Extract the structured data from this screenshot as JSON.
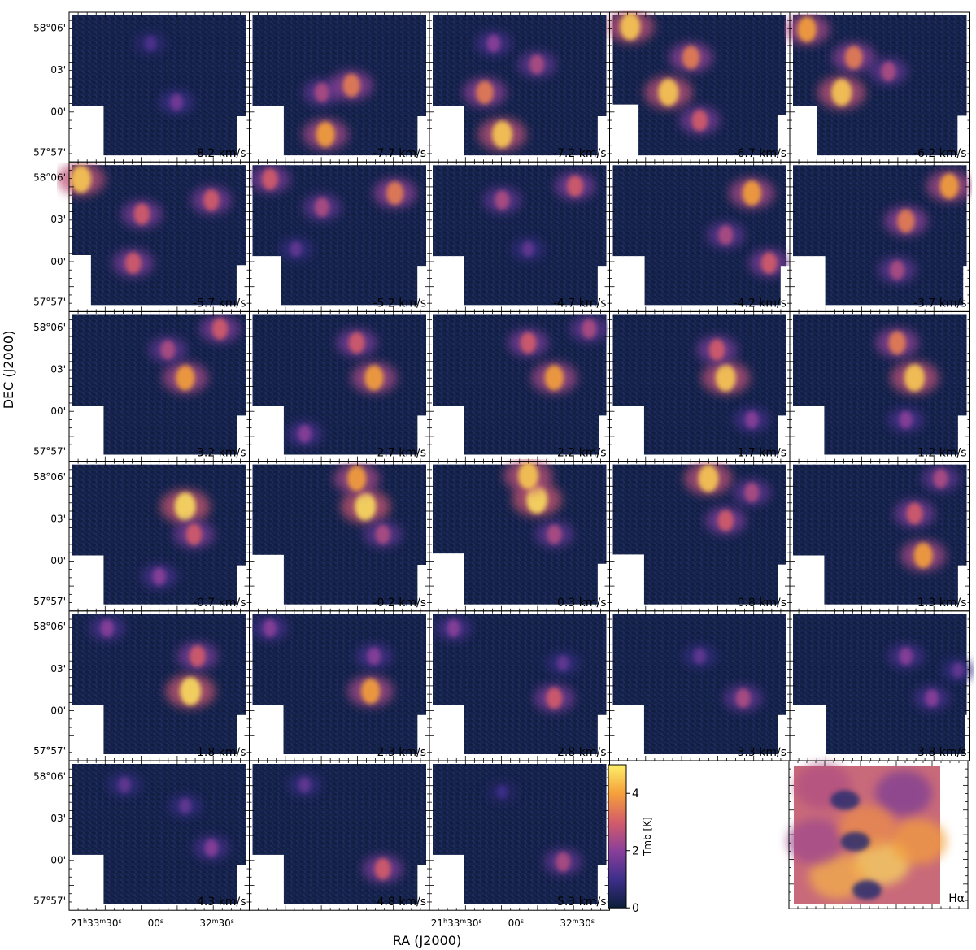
{
  "chart_data": {
    "type": "heatmap",
    "title": "",
    "xlabel": "RA (J2000)",
    "ylabel": "DEC (J2000)",
    "y_tick_labels": [
      "58°06'",
      "03'",
      "00'",
      "57°57'"
    ],
    "x_tick_labels": [
      "21h33m30s",
      "00s",
      "32m30s"
    ],
    "colorbar": {
      "label": "Tmb [K]",
      "range": [
        0,
        5
      ],
      "ticks": [
        0,
        2,
        4
      ],
      "colors": [
        "#0b1e3a",
        "#3d2f8a",
        "#8a3f9a",
        "#d45c6a",
        "#f5a03a",
        "#fdf06a"
      ]
    },
    "panels": [
      {
        "label": "-8.2 km/s",
        "velocity": -8.2
      },
      {
        "label": "-7.7 km/s",
        "velocity": -7.7
      },
      {
        "label": "-7.2 km/s",
        "velocity": -7.2
      },
      {
        "label": "-6.7 km/s",
        "velocity": -6.7
      },
      {
        "label": "-6.2 km/s",
        "velocity": -6.2
      },
      {
        "label": "-5.7 km/s",
        "velocity": -5.7
      },
      {
        "label": "-5.2 km/s",
        "velocity": -5.2
      },
      {
        "label": "-4.7 km/s",
        "velocity": -4.7
      },
      {
        "label": "-4.2 km/s",
        "velocity": -4.2
      },
      {
        "label": "-3.7 km/s",
        "velocity": -3.7
      },
      {
        "label": "-3.2 km/s",
        "velocity": -3.2
      },
      {
        "label": "-2.7 km/s",
        "velocity": -2.7
      },
      {
        "label": "-2.2 km/s",
        "velocity": -2.2
      },
      {
        "label": "-1.7 km/s",
        "velocity": -1.7
      },
      {
        "label": "-1.2 km/s",
        "velocity": -1.2
      },
      {
        "label": "-0.7 km/s",
        "velocity": -0.7
      },
      {
        "label": "-0.2 km/s",
        "velocity": -0.2
      },
      {
        "label": "0.3 km/s",
        "velocity": 0.3
      },
      {
        "label": "0.8 km/s",
        "velocity": 0.8
      },
      {
        "label": "1.3 km/s",
        "velocity": 1.3
      },
      {
        "label": "1.8 km/s",
        "velocity": 1.8
      },
      {
        "label": "2.3 km/s",
        "velocity": 2.3
      },
      {
        "label": "2.8 km/s",
        "velocity": 2.8
      },
      {
        "label": "3.3 km/s",
        "velocity": 3.3
      },
      {
        "label": "3.8 km/s",
        "velocity": 3.8
      },
      {
        "label": "4.3 km/s",
        "velocity": 4.3
      },
      {
        "label": "4.8 km/s",
        "velocity": 4.8
      },
      {
        "label": "5.3 km/s",
        "velocity": 5.3
      }
    ],
    "reference_panel": {
      "label": "Hα"
    }
  }
}
